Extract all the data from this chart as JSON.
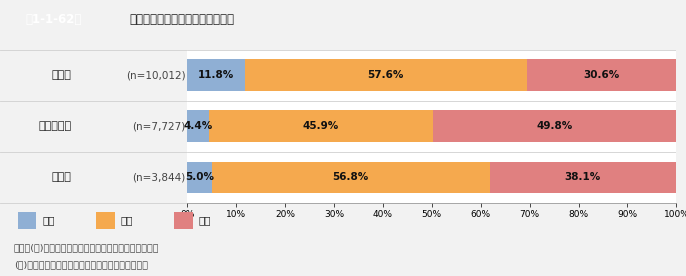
{
  "title_left": "第1-1-62図",
  "title_right": "業種別に見た、人員の過不足状況",
  "categories": [
    "製造業",
    "サービス業",
    "その他"
  ],
  "n_labels": [
    "(n=10,012)",
    "(n=7,727)",
    "(n=3,844)"
  ],
  "series": {
    "過剰": [
      11.8,
      4.4,
      5.0
    ],
    "適正": [
      57.6,
      45.9,
      56.8
    ],
    "不足": [
      30.6,
      49.8,
      38.1
    ]
  },
  "colors": {
    "過剰": "#8fafd4",
    "適正": "#f5a94e",
    "不足": "#e08080"
  },
  "series_order": [
    "過剰",
    "適正",
    "不足"
  ],
  "footer_line1": "資料：(株)帝国データバンク「取引条件改善状況調査」",
  "footer_line2": "(注)受注側事業者向けアンケートを集計したもの。",
  "title_left_bg": "#5c7a6a",
  "title_left_text": "#ffffff",
  "title_right_bg": "#eaeeea",
  "overall_bg": "#f2f2f2",
  "chart_bg": "#ffffff",
  "separator_color": "#d0d0d0"
}
